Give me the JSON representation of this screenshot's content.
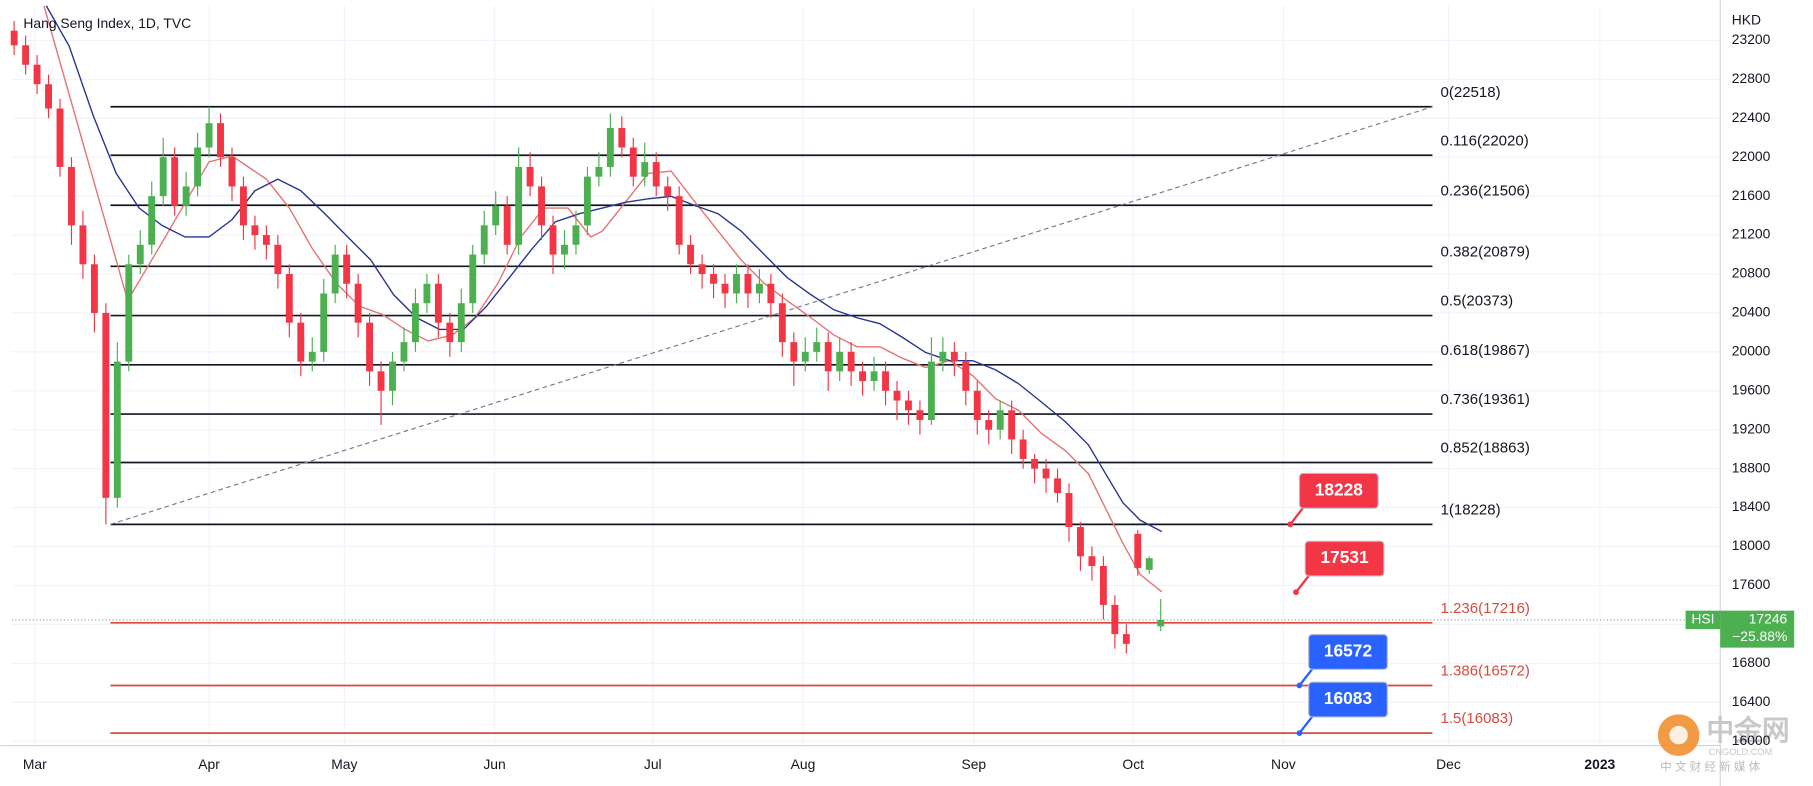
{
  "chart_data": {
    "type": "candlestick",
    "title": "Hang Seng Index, 1D, TVC",
    "y_axis_label": "HKD",
    "categories": [
      null,
      null,
      null,
      null,
      null,
      null,
      null,
      null,
      null,
      null,
      null,
      null,
      null,
      null,
      null,
      null,
      null,
      null,
      null,
      null,
      null,
      null,
      null,
      null,
      null,
      null,
      null,
      null,
      null,
      null,
      null,
      null,
      null,
      null,
      null,
      null,
      null,
      null,
      null,
      null,
      null,
      null,
      null,
      null,
      null,
      null,
      null,
      null,
      null,
      null,
      null,
      null,
      null,
      null,
      null,
      null,
      null,
      null,
      null,
      null,
      null,
      null,
      null,
      null,
      null,
      null,
      null,
      null,
      null,
      null,
      null,
      null,
      null,
      null,
      null,
      null,
      null,
      null,
      null,
      null,
      null,
      null,
      null,
      null,
      null,
      null,
      null,
      null,
      null,
      null,
      null,
      null,
      null,
      null,
      null,
      null,
      null,
      null,
      null,
      null,
      null
    ],
    "open": [
      23300,
      23150,
      22950,
      22750,
      22500,
      21900,
      21300,
      20900,
      20400,
      18500,
      19900,
      20900,
      21100,
      21600,
      22000,
      21500,
      21700,
      22100,
      22350,
      22000,
      21700,
      21300,
      21200,
      21100,
      20800,
      20300,
      19900,
      20000,
      20600,
      21000,
      20700,
      20300,
      19800,
      19600,
      19900,
      20100,
      20500,
      20700,
      20300,
      20100,
      20500,
      21000,
      21300,
      21500,
      21100,
      21900,
      21700,
      21300,
      21000,
      21100,
      21300,
      21800,
      21900,
      22300,
      22100,
      21800,
      21950,
      21700,
      21600,
      21100,
      20900,
      20800,
      20700,
      20600,
      20800,
      20600,
      20700,
      20500,
      20100,
      19900,
      20000,
      20100,
      19800,
      20000,
      19800,
      19700,
      19800,
      19600,
      19500,
      19400,
      19300,
      19900,
      20000,
      19900,
      19600,
      19300,
      19200,
      19400,
      19100,
      18900,
      18800,
      18700,
      18550,
      18200,
      17900,
      17800,
      17400,
      17100,
      18130,
      17760,
      17180
    ],
    "high": [
      23400,
      23250,
      23050,
      22850,
      22600,
      22000,
      21450,
      21000,
      20500,
      20100,
      21000,
      21250,
      21750,
      22200,
      22100,
      21850,
      22250,
      22518,
      22450,
      22100,
      21800,
      21400,
      21300,
      21200,
      20900,
      20400,
      20150,
      20750,
      21100,
      21100,
      20800,
      20400,
      19900,
      20000,
      20250,
      20650,
      20800,
      20800,
      20400,
      20650,
      21100,
      21450,
      21650,
      21600,
      22100,
      22050,
      21800,
      21400,
      21250,
      21450,
      21900,
      22050,
      22450,
      22420,
      22200,
      22150,
      22050,
      21800,
      21700,
      21200,
      21000,
      20900,
      20800,
      20900,
      20900,
      20850,
      20800,
      20600,
      20200,
      20150,
      20250,
      20200,
      20150,
      20100,
      19900,
      19950,
      19900,
      19700,
      19600,
      19500,
      20150,
      20150,
      20100,
      20000,
      19700,
      19400,
      19500,
      19500,
      19200,
      18950,
      18900,
      18800,
      18650,
      18250,
      18000,
      17900,
      17500,
      17200,
      18170,
      17900,
      17460
    ],
    "low": [
      23050,
      22850,
      22650,
      22400,
      21800,
      21100,
      20750,
      20200,
      18228,
      18400,
      19800,
      20800,
      21000,
      21500,
      21400,
      21400,
      21600,
      22000,
      21900,
      21550,
      21150,
      21050,
      20950,
      20650,
      20150,
      19750,
      19800,
      19900,
      20500,
      20550,
      20150,
      19650,
      19250,
      19450,
      19800,
      20000,
      20400,
      20150,
      19950,
      20000,
      20400,
      20900,
      21200,
      21000,
      21000,
      21600,
      21150,
      20800,
      20850,
      21000,
      21200,
      21700,
      21800,
      22000,
      21700,
      21700,
      21600,
      21450,
      21000,
      20800,
      20650,
      20550,
      20450,
      20500,
      20450,
      20500,
      20350,
      19950,
      19650,
      19800,
      19900,
      19600,
      19700,
      19650,
      19550,
      19600,
      19450,
      19300,
      19250,
      19150,
      19250,
      19800,
      19750,
      19450,
      19150,
      19050,
      19100,
      18950,
      18800,
      18650,
      18550,
      18450,
      18050,
      17750,
      17650,
      17250,
      16950,
      16900,
      17700,
      17720,
      17130
    ],
    "close": [
      23150,
      22950,
      22750,
      22500,
      21900,
      21300,
      20900,
      20400,
      18500,
      19900,
      20900,
      21100,
      21600,
      22000,
      21500,
      21700,
      22100,
      22350,
      22000,
      21700,
      21300,
      21200,
      21100,
      20800,
      20300,
      19900,
      20000,
      20600,
      21000,
      20700,
      20300,
      19800,
      19600,
      19900,
      20100,
      20500,
      20700,
      20300,
      20100,
      20500,
      21000,
      21300,
      21500,
      21100,
      21900,
      21700,
      21300,
      21000,
      21100,
      21300,
      21800,
      21900,
      22300,
      22100,
      21800,
      21950,
      21700,
      21600,
      21100,
      20900,
      20800,
      20700,
      20600,
      20800,
      20600,
      20700,
      20500,
      20100,
      19900,
      20000,
      20100,
      19800,
      20000,
      19800,
      19700,
      19800,
      19600,
      19500,
      19400,
      19300,
      19900,
      20000,
      19900,
      19600,
      19300,
      19200,
      19400,
      19100,
      18900,
      18800,
      18700,
      18550,
      18200,
      17900,
      17800,
      17400,
      17100,
      17000,
      17780,
      17880,
      17246
    ],
    "up_color": "#4caf50",
    "down_color": "#f23645",
    "lines": [
      {
        "color": "#e57373",
        "x": [
          2.6,
          9.9,
          12.9,
          17.0,
          19.0,
          22.0,
          24.0,
          26.0,
          28.1,
          30.1,
          32.1,
          34.1,
          36.1,
          38.2,
          40.2,
          42.2,
          44.2,
          46.2,
          48.3,
          50.3,
          51.3,
          53.3,
          55.3,
          57.3,
          59.4,
          61.4,
          63.4,
          65.4,
          67.4,
          69.5,
          71.5,
          73.5,
          75.5,
          77.5,
          79.5,
          81.6,
          83.6,
          85.6,
          87.6,
          89.6,
          91.7,
          93.7,
          95.2,
          96.7,
          98.2,
          100.1
        ],
        "values": [
          23556,
          20528,
          21122,
          21953,
          22012,
          21775,
          21478,
          21062,
          20706,
          20469,
          20385,
          20231,
          20112,
          20172,
          20350,
          20706,
          21181,
          21478,
          21478,
          21181,
          21241,
          21537,
          21834,
          21858,
          21537,
          21241,
          20944,
          20706,
          20528,
          20350,
          20172,
          20053,
          20053,
          19934,
          19839,
          19910,
          19756,
          19518,
          19400,
          19162,
          18984,
          18747,
          18390,
          18034,
          17713,
          17535
        ]
      },
      {
        "color": "#283593",
        "x": [
          2.8,
          4.8,
          6.9,
          8.9,
          10.9,
          12.9,
          14.9,
          17.0,
          19.0,
          21.0,
          23.0,
          25.0,
          27.1,
          29.1,
          31.1,
          33.1,
          35.1,
          37.1,
          39.2,
          41.2,
          43.2,
          45.2,
          47.2,
          49.3,
          51.3,
          53.3,
          55.3,
          57.3,
          59.4,
          61.4,
          63.4,
          65.4,
          67.4,
          69.5,
          71.5,
          73.5,
          75.5,
          77.5,
          79.5,
          81.6,
          83.6,
          85.6,
          87.6,
          89.6,
          91.7,
          93.7,
          95.2,
          96.7,
          98.2,
          100.1
        ],
        "values": [
          23556,
          23141,
          22428,
          21834,
          21478,
          21300,
          21181,
          21181,
          21359,
          21656,
          21775,
          21656,
          21419,
          21181,
          20944,
          20587,
          20350,
          20231,
          20231,
          20469,
          20765,
          21062,
          21336,
          21419,
          21478,
          21537,
          21573,
          21597,
          21502,
          21419,
          21241,
          21003,
          20765,
          20587,
          20433,
          20350,
          20290,
          20148,
          19993,
          19910,
          19910,
          19815,
          19673,
          19483,
          19281,
          19044,
          18747,
          18450,
          18271,
          18153
        ]
      }
    ],
    "trendline": {
      "x": [
        8.4,
        123.7
      ],
      "values": [
        18228,
        22518
      ]
    },
    "fib_levels": [
      {
        "label": "0(22518)",
        "value": 22518,
        "color": "#131722"
      },
      {
        "label": "0.116(22020)",
        "value": 22020,
        "color": "#131722"
      },
      {
        "label": "0.236(21506)",
        "value": 21506,
        "color": "#131722"
      },
      {
        "label": "0.382(20879)",
        "value": 20879,
        "color": "#131722"
      },
      {
        "label": "0.5(20373)",
        "value": 20373,
        "color": "#131722"
      },
      {
        "label": "0.618(19867)",
        "value": 19867,
        "color": "#131722"
      },
      {
        "label": "0.736(19361)",
        "value": 19361,
        "color": "#131722"
      },
      {
        "label": "0.852(18863)",
        "value": 18863,
        "color": "#131722"
      },
      {
        "label": "1(18228)",
        "value": 18228,
        "color": "#131722"
      },
      {
        "label": "1.236(17216)",
        "value": 17216,
        "color": "#d84a3c"
      },
      {
        "label": "1.386(16572)",
        "value": 16572,
        "color": "#d84a3c"
      },
      {
        "label": "1.5(16083)",
        "value": 16083,
        "color": "#d84a3c"
      }
    ],
    "price_labels": [
      {
        "value": 18228,
        "color": "#f23645"
      },
      {
        "value": 17531,
        "color": "#f23645"
      },
      {
        "value": 16572,
        "color": "#2962ff"
      },
      {
        "value": 16083,
        "color": "#2962ff"
      }
    ],
    "symbol": "HSI",
    "change": "−25.88%",
    "last_color": "#4caf50",
    "xlim": [
      -0.2,
      148.8
    ],
    "xticks": [
      {
        "value": 1.8,
        "label": "Mar"
      },
      {
        "value": 17.0,
        "label": "Apr"
      },
      {
        "value": 28.8,
        "label": "May"
      },
      {
        "value": 41.9,
        "label": "Jun"
      },
      {
        "value": 55.7,
        "label": "Jul"
      },
      {
        "value": 68.8,
        "label": "Aug"
      },
      {
        "value": 83.7,
        "label": "Sep"
      },
      {
        "value": 97.6,
        "label": "Oct"
      },
      {
        "value": 110.7,
        "label": "Nov"
      },
      {
        "value": 125.1,
        "label": "Dec"
      },
      {
        "value": 138.3,
        "label": "2023"
      }
    ],
    "ylim": [
      15955,
      23556
    ],
    "yticks": [
      16000,
      16400,
      16800,
      17200,
      17600,
      18000,
      18400,
      18800,
      19200,
      19600,
      20000,
      20400,
      20800,
      21200,
      21600,
      22000,
      22400,
      22800,
      23200
    ],
    "grid": true
  },
  "watermark": {
    "brand": "中金网",
    "site": "CNGOLD.COM",
    "tagline": "中 文 财 经 新 媒 体"
  }
}
